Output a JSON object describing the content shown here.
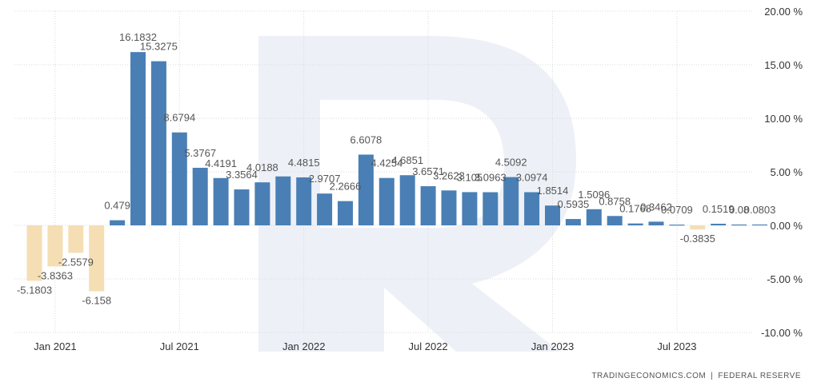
{
  "chart_data": {
    "type": "bar",
    "x_ticks": [
      "Jan 2021",
      "Jul 2021",
      "Jan 2022",
      "Jul 2022",
      "Jan 2023",
      "Jul 2023"
    ],
    "values": [
      -5.1803,
      -3.8363,
      -2.5579,
      -6.158,
      0.479,
      16.1832,
      15.3275,
      8.6794,
      5.3767,
      4.4191,
      3.3564,
      4.0188,
      4.5714,
      4.4815,
      2.9707,
      2.2666,
      6.6078,
      4.4254,
      4.6851,
      3.6571,
      3.2623,
      3.105,
      3.0963,
      4.5092,
      3.0974,
      1.8514,
      0.5935,
      1.5096,
      0.8758,
      0.1768,
      0.3462,
      0.0709,
      -0.3835,
      0.1519,
      0.08,
      0.0803
    ],
    "data_labels": [
      {
        "index": 0,
        "text": "-5.1803"
      },
      {
        "index": 1,
        "text": "-3.8363"
      },
      {
        "index": 2,
        "text": "-2.5579"
      },
      {
        "index": 3,
        "text": "-6.158"
      },
      {
        "index": 4,
        "text": "0.479"
      },
      {
        "index": 5,
        "text": "16.1832"
      },
      {
        "index": 6,
        "text": "15.3275"
      },
      {
        "index": 7,
        "text": "8.6794"
      },
      {
        "index": 8,
        "text": "5.3767"
      },
      {
        "index": 9,
        "text": "4.4191"
      },
      {
        "index": 10,
        "text": "3.3564"
      },
      {
        "index": 11,
        "text": "4.0188"
      },
      {
        "index": 13,
        "text": "4.4815"
      },
      {
        "index": 14,
        "text": "2.9707"
      },
      {
        "index": 15,
        "text": "2.2666"
      },
      {
        "index": 16,
        "text": "6.6078"
      },
      {
        "index": 17,
        "text": "4.4254"
      },
      {
        "index": 18,
        "text": "4.6851"
      },
      {
        "index": 19,
        "text": "3.6571"
      },
      {
        "index": 20,
        "text": "3.2623"
      },
      {
        "index": 21,
        "text": "3.105"
      },
      {
        "index": 22,
        "text": "3.0963"
      },
      {
        "index": 23,
        "text": "4.5092"
      },
      {
        "index": 24,
        "text": "3.0974"
      },
      {
        "index": 25,
        "text": "1.8514"
      },
      {
        "index": 26,
        "text": "0.5935"
      },
      {
        "index": 27,
        "text": "1.5096"
      },
      {
        "index": 28,
        "text": "0.8758"
      },
      {
        "index": 29,
        "text": "0.1768"
      },
      {
        "index": 30,
        "text": "0.3462"
      },
      {
        "index": 31,
        "text": "0.0709"
      },
      {
        "index": 32,
        "text": "-0.3835"
      },
      {
        "index": 33,
        "text": "0.1519"
      },
      {
        "index": 34,
        "text": "0.08"
      },
      {
        "index": 35,
        "text": "0.0803"
      }
    ],
    "y_ticks": [
      {
        "value": 20,
        "label": "20.00 %"
      },
      {
        "value": 15,
        "label": "15.00 %"
      },
      {
        "value": 10,
        "label": "10.00 %"
      },
      {
        "value": 5,
        "label": "5.00 %"
      },
      {
        "value": 0,
        "label": "0.00 %"
      },
      {
        "value": -5,
        "label": "-5.00 %"
      },
      {
        "value": -10,
        "label": "-10.00 %"
      }
    ],
    "ylim": [
      -10,
      20
    ],
    "y_axis_position": "right",
    "grid": true,
    "legend": "none",
    "colors": {
      "positive": "#4a7fb5",
      "negative": "#f5deb3",
      "grid": "#d9d9d9",
      "label": "#555555",
      "watermark": "#edf1f7"
    }
  },
  "footer": {
    "source_left": "TRADINGECONOMICS.COM",
    "separator": "|",
    "source_right": "FEDERAL RESERVE"
  },
  "watermark": {
    "icon": "r-logo-icon"
  }
}
